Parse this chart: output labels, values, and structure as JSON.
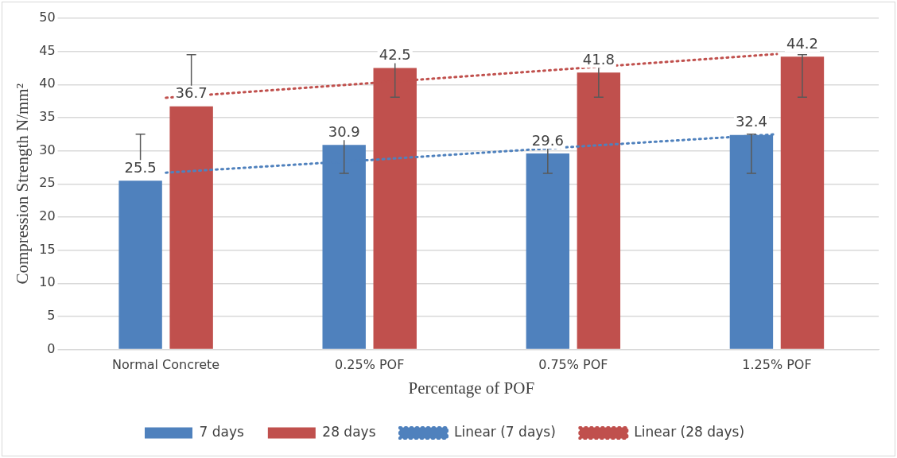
{
  "chart_data": {
    "type": "bar",
    "xlabel": "Percentage of POF",
    "ylabel": "Compression Strength N/mm²",
    "categories": [
      "Normal Concrete",
      "0.25% POF",
      "0.75% POF",
      "1.25% POF"
    ],
    "series": [
      {
        "name": "7 days",
        "color": "#4f81bd",
        "values": [
          25.5,
          30.9,
          29.6,
          32.4
        ],
        "value_labels": [
          "25.5",
          "30.9",
          "29.6",
          "32.4"
        ],
        "errors": [
          [
            26.6,
            32.5
          ],
          [
            26.6,
            32.5
          ],
          [
            26.6,
            32.5
          ],
          [
            26.6,
            32.5
          ]
        ]
      },
      {
        "name": "28 days",
        "color": "#c0504d",
        "values": [
          36.7,
          42.5,
          41.8,
          44.2
        ],
        "value_labels": [
          "36.7",
          "42.5",
          "41.8",
          "44.2"
        ],
        "errors": [
          [
            38.1,
            44.5
          ],
          [
            38.1,
            44.5
          ],
          [
            38.1,
            44.5
          ],
          [
            38.1,
            44.5
          ]
        ]
      },
      {
        "name": "Linear (7 days)",
        "type": "line",
        "line_style": "dotted",
        "color": "#4f81bd",
        "values": [
          26.7,
          28.6,
          30.6,
          32.5
        ]
      },
      {
        "name": "Linear (28 days)",
        "type": "line",
        "line_style": "dotted",
        "color": "#c0504d",
        "values": [
          38.0,
          40.2,
          42.4,
          44.6
        ]
      }
    ],
    "ylim": [
      0,
      50
    ],
    "yticks": [
      0,
      5,
      10,
      15,
      20,
      25,
      30,
      35,
      40,
      45,
      50
    ],
    "grid": "y",
    "legend": "bottom"
  }
}
